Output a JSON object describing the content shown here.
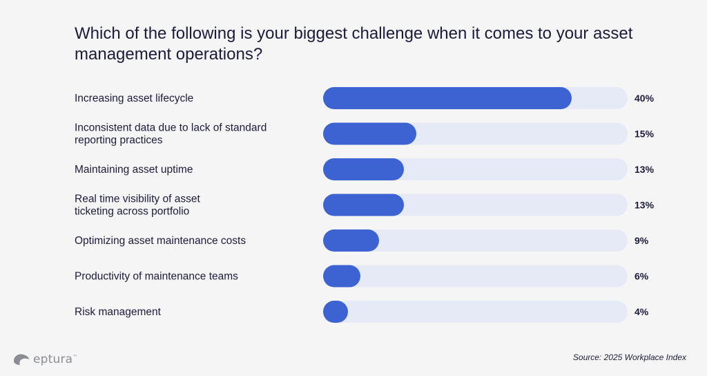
{
  "title": "Which of the following is your biggest challenge when it comes to your asset management operations?",
  "colors": {
    "bar": "#3d63d2",
    "track": "#e6eaf7",
    "text": "#1a1b3a",
    "background": "#f5f5f6",
    "brand": "#8a8d94"
  },
  "chart_data": {
    "type": "bar",
    "orientation": "horizontal",
    "title": "Which of the following is your biggest challenge when it comes to your asset management operations?",
    "xlim": [
      0,
      49
    ],
    "categories": [
      "Increasing asset lifecycle",
      "Inconsistent data due to lack of standard reporting practices",
      "Maintaining asset uptime",
      "Real time visibility of asset ticketing across portfolio",
      "Optimizing asset maintenance costs",
      "Productivity of maintenance teams",
      "Risk management"
    ],
    "label_lines": [
      [
        "Increasing asset lifecycle"
      ],
      [
        "Inconsistent data due to lack of standard",
        "reporting practices"
      ],
      [
        "Maintaining asset uptime"
      ],
      [
        "Real time visibility of asset",
        "ticketing across portfolio"
      ],
      [
        "Optimizing asset maintenance costs"
      ],
      [
        "Productivity of maintenance teams"
      ],
      [
        "Risk management"
      ]
    ],
    "values": [
      40,
      15,
      13,
      13,
      9,
      6,
      4
    ],
    "value_labels": [
      "40%",
      "15%",
      "13%",
      "13%",
      "9%",
      "6%",
      "4%"
    ],
    "unit": "%",
    "legend": "none",
    "grid": false
  },
  "brand": {
    "name": "eptura",
    "mark": "™",
    "icon": "eptura-leaf-icon"
  },
  "source": "Source: 2025 Workplace Index"
}
